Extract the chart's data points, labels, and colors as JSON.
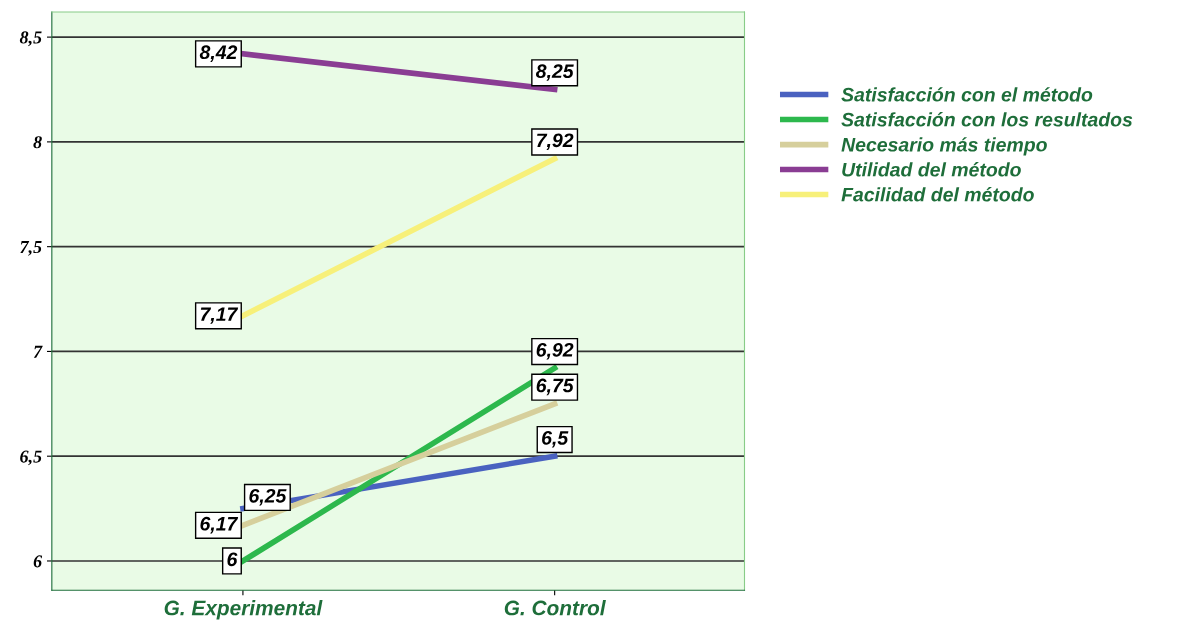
{
  "chart_data": {
    "type": "line",
    "categories": [
      "G. Experimental",
      "G. Control"
    ],
    "series": [
      {
        "name": "Satisfacción con el método",
        "color": "#4a62c0",
        "values": [
          6.25,
          6.5
        ],
        "value_labels": [
          "6,25",
          "6,5"
        ]
      },
      {
        "name": "Satisfacción con los resultados",
        "color": "#2db84d",
        "values": [
          6,
          6.92
        ],
        "value_labels": [
          "6",
          "6,92"
        ]
      },
      {
        "name": "Necesario más tiempo",
        "color": "#d6cf9c",
        "values": [
          6.17,
          6.75
        ],
        "value_labels": [
          "6,17",
          "6,75"
        ]
      },
      {
        "name": "Utilidad del método",
        "color": "#8a3d93",
        "values": [
          8.42,
          8.25
        ],
        "value_labels": [
          "8,42",
          "8,25"
        ]
      },
      {
        "name": "Facilidad del método",
        "color": "#f7f07a",
        "values": [
          7.17,
          7.92
        ],
        "value_labels": [
          "7,17",
          "7,92"
        ]
      }
    ],
    "ylim": [
      5.86,
      8.62
    ],
    "yticks": [
      {
        "value": 6,
        "label": "6"
      },
      {
        "value": 6.5,
        "label": "6,5"
      },
      {
        "value": 7,
        "label": "7"
      },
      {
        "value": 7.5,
        "label": "7,5"
      },
      {
        "value": 8,
        "label": "8"
      },
      {
        "value": 8.5,
        "label": "8,5"
      }
    ],
    "grid": "y",
    "legend": "right",
    "line_style": "solid"
  }
}
